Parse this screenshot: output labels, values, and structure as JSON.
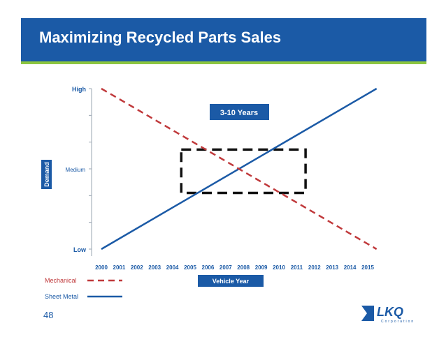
{
  "slide": {
    "title": "Maximizing Recycled Parts Sales",
    "page_number": "48",
    "logo_text": "LKQ",
    "logo_subtext": "Corporation"
  },
  "colors": {
    "header_bg": "#1b5aa6",
    "header_rule": "#8cc63f",
    "sheet_metal": "#1b5aa6",
    "mechanical": "#c0393b",
    "highlight_box": "#111111",
    "label_text": "#1b5aa6"
  },
  "chart_data": {
    "type": "line",
    "title": "",
    "xlabel": "Vehicle Year",
    "ylabel": "Demand",
    "categories": [
      "2000",
      "2001",
      "2002",
      "2003",
      "2004",
      "2005",
      "2006",
      "2007",
      "2008",
      "2009",
      "2010",
      "2011",
      "2012",
      "2013",
      "2014",
      "2015"
    ],
    "y_tick_labels": [
      {
        "label": "High",
        "value": 1
      },
      {
        "label": "Medium",
        "value": 0.5
      },
      {
        "label": "Low",
        "value": 0
      }
    ],
    "ylim": [
      0,
      1
    ],
    "series": [
      {
        "name": "Sheet Metal",
        "style": "solid",
        "color": "#1b5aa6",
        "x": [
          2000,
          2015.5
        ],
        "y": [
          0.0,
          1.0
        ]
      },
      {
        "name": "Mechanical",
        "style": "dashed",
        "color": "#c0393b",
        "x": [
          2000,
          2015.5
        ],
        "y": [
          1.0,
          0.0
        ]
      }
    ],
    "annotation": {
      "label": "3-10 Years",
      "x_range": [
        2004.5,
        2011.5
      ],
      "y_range": [
        0.35,
        0.62
      ]
    },
    "legend_placement": "bottom-left",
    "grid": false
  }
}
